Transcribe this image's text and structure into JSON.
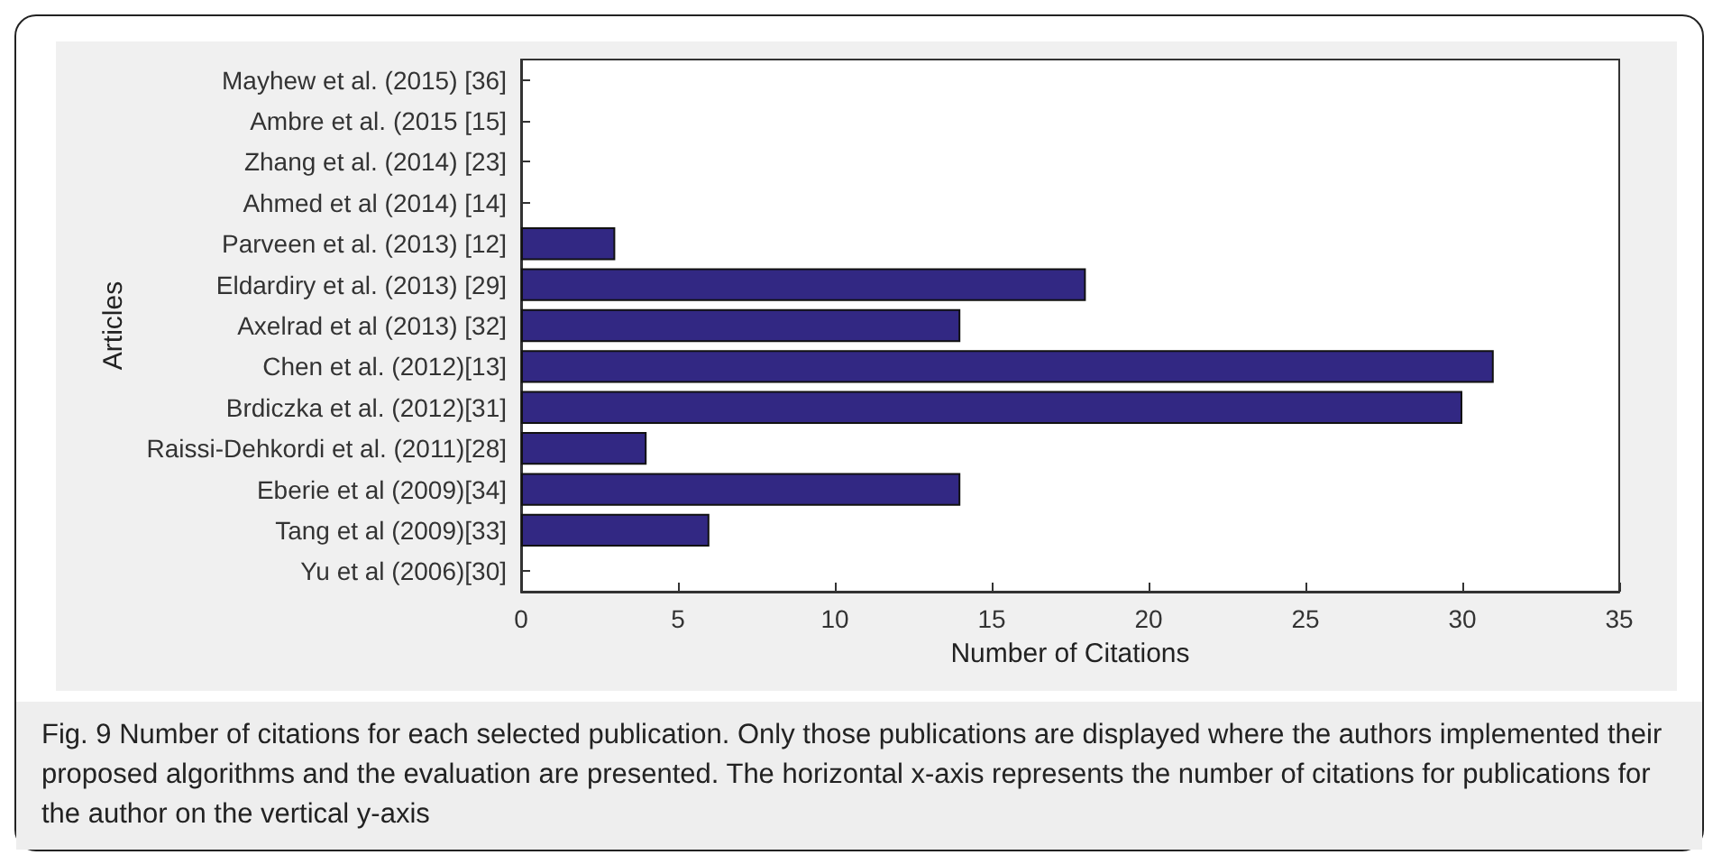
{
  "chart_data": {
    "type": "bar",
    "orientation": "horizontal",
    "xlabel": "Number of Citations",
    "ylabel": "Articles",
    "categories": [
      "Mayhew et al. (2015) [36]",
      "Ambre et al. (2015 [15]",
      "Zhang et al. (2014) [23]",
      "Ahmed et al (2014) [14]",
      "Parveen et al. (2013) [12]",
      "Eldardiry et al. (2013) [29]",
      "Axelrad et al (2013) [32]",
      "Chen et al. (2012)[13]",
      "Brdiczka et al. (2012)[31]",
      "Raissi-Dehkordi et al. (2011)[28]",
      "Eberie et al (2009)[34]",
      "Tang et al (2009)[33]",
      "Yu et al (2006)[30]"
    ],
    "values": [
      0,
      0,
      0,
      0,
      3,
      18,
      14,
      31,
      30,
      4,
      14,
      6,
      0
    ],
    "color": "#322883",
    "xlim": [
      0,
      35
    ],
    "xticks": [
      0,
      5,
      10,
      15,
      20,
      25,
      30,
      35
    ],
    "grid": false,
    "annotations": [
      "Fig. 9 Number of citations for each selected publication. Only those publications are displayed where the authors implemented their proposed algorithms and the evaluation are presented. The horizontal x-axis represents the number of citations for publications for the author on the vertical y-axis"
    ]
  }
}
